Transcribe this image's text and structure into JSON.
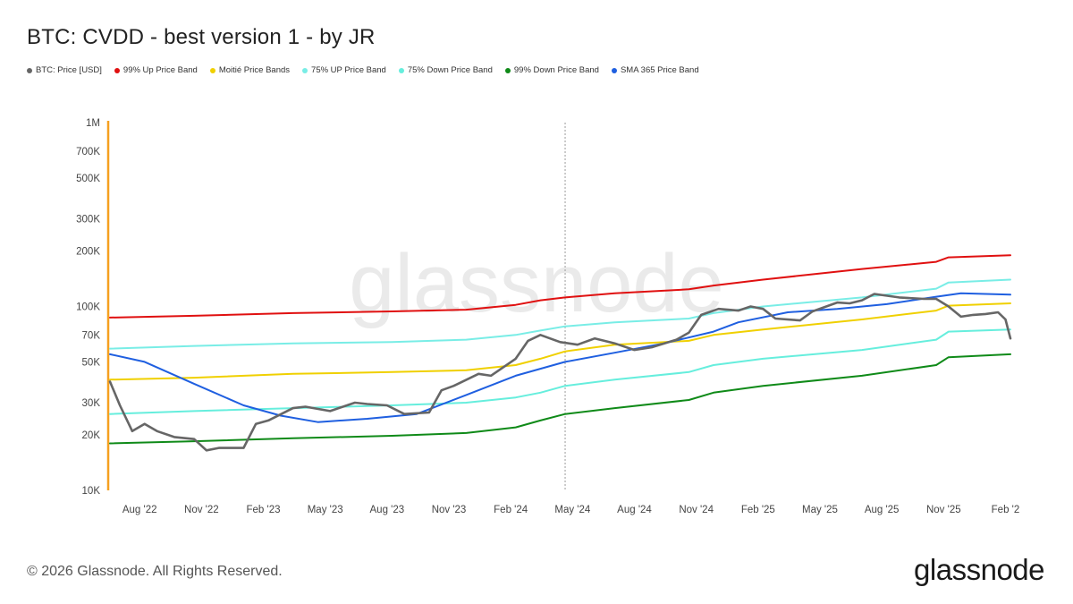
{
  "title": "BTC: CVDD - best version 1 - by JR",
  "footer": "© 2026 Glassnode. All Rights Reserved.",
  "brand": "glassnode",
  "watermark": "glassnode",
  "colors": {
    "price": "#666666",
    "up99": "#e01010",
    "moitie": "#f0d000",
    "up75": "#79ede6",
    "down75": "#66eedd",
    "down99": "#0f8a18",
    "sma365": "#1f5fe0",
    "yaxis": "#f5a020"
  },
  "legend": [
    {
      "key": "price",
      "label": "BTC: Price [USD]"
    },
    {
      "key": "up99",
      "label": "99% Up Price Band"
    },
    {
      "key": "moitie",
      "label": "Moitié Price Bands"
    },
    {
      "key": "up75",
      "label": "75% UP Price Band"
    },
    {
      "key": "down75",
      "label": "75% Down Price Band"
    },
    {
      "key": "down99",
      "label": "99% Down Price Band"
    },
    {
      "key": "sma365",
      "label": "SMA 365 Price Band"
    }
  ],
  "chart_data": {
    "type": "line",
    "yscale": "log",
    "ylim": [
      10000,
      1000000
    ],
    "xlim": [
      2022.46,
      2026.1
    ],
    "ytick_values": [
      1000000,
      700000,
      500000,
      300000,
      200000,
      100000,
      70000,
      50000,
      30000,
      20000,
      10000
    ],
    "ytick_labels": [
      "1M",
      "700K",
      "500K",
      "300K",
      "200K",
      "100K",
      "70K",
      "50K",
      "30K",
      "20K",
      "10K"
    ],
    "xtick_values": [
      2022.58,
      2022.83,
      2023.08,
      2023.33,
      2023.58,
      2023.83,
      2024.08,
      2024.33,
      2024.58,
      2024.83,
      2025.08,
      2025.33,
      2025.58,
      2025.83,
      2026.08
    ],
    "xtick_labels": [
      "Aug '22",
      "Nov '22",
      "Feb '23",
      "May '23",
      "Aug '23",
      "Nov '23",
      "Feb '24",
      "May '24",
      "Aug '24",
      "Nov '24",
      "Feb '25",
      "May '25",
      "Aug '25",
      "Nov '25",
      "Feb '2"
    ],
    "marker_x": 2024.3,
    "series": [
      {
        "name": "BTC: Price [USD]",
        "key": "price",
        "x": [
          2022.46,
          2022.5,
          2022.55,
          2022.6,
          2022.65,
          2022.72,
          2022.8,
          2022.85,
          2022.9,
          2023.0,
          2023.05,
          2023.1,
          2023.2,
          2023.25,
          2023.35,
          2023.45,
          2023.5,
          2023.58,
          2023.65,
          2023.75,
          2023.8,
          2023.85,
          2023.95,
          2024.0,
          2024.1,
          2024.15,
          2024.2,
          2024.28,
          2024.35,
          2024.42,
          2024.5,
          2024.58,
          2024.65,
          2024.75,
          2024.8,
          2024.85,
          2024.92,
          2025.0,
          2025.05,
          2025.1,
          2025.15,
          2025.25,
          2025.3,
          2025.4,
          2025.45,
          2025.5,
          2025.55,
          2025.65,
          2025.75,
          2025.8,
          2025.85,
          2025.9,
          2025.95,
          2026.0,
          2026.05,
          2026.08,
          2026.1
        ],
        "values": [
          39000,
          29000,
          21000,
          23000,
          21000,
          19500,
          19000,
          16500,
          17000,
          17000,
          23000,
          24000,
          28000,
          28500,
          27000,
          30000,
          29500,
          29000,
          26000,
          26500,
          35000,
          37000,
          43000,
          42000,
          52000,
          65000,
          70000,
          64000,
          62000,
          67000,
          63000,
          58000,
          60000,
          66000,
          72000,
          90000,
          97000,
          95000,
          100000,
          97000,
          86000,
          84000,
          94000,
          105000,
          104000,
          108000,
          117000,
          112000,
          110000,
          110000,
          100000,
          88000,
          90000,
          91000,
          93000,
          85000,
          67000
        ]
      },
      {
        "name": "99% Up Price Band",
        "key": "up99",
        "x": [
          2022.46,
          2022.8,
          2023.2,
          2023.6,
          2023.9,
          2024.1,
          2024.2,
          2024.3,
          2024.5,
          2024.8,
          2024.9,
          2025.1,
          2025.5,
          2025.8,
          2025.85,
          2026.1
        ],
        "values": [
          87000,
          89000,
          92000,
          94000,
          96000,
          102000,
          108000,
          112000,
          118000,
          124000,
          130000,
          140000,
          160000,
          175000,
          185000,
          190000
        ]
      },
      {
        "name": "Moitié Price Bands",
        "key": "moitie",
        "x": [
          2022.46,
          2022.8,
          2023.2,
          2023.6,
          2023.9,
          2024.1,
          2024.2,
          2024.3,
          2024.5,
          2024.8,
          2024.9,
          2025.1,
          2025.5,
          2025.8,
          2025.85,
          2026.1
        ],
        "values": [
          40000,
          41000,
          43000,
          44000,
          45000,
          48000,
          52000,
          57000,
          62000,
          65000,
          70000,
          75000,
          85000,
          95000,
          101000,
          104000
        ]
      },
      {
        "name": "75% UP Price Band",
        "key": "up75",
        "x": [
          2022.46,
          2022.8,
          2023.2,
          2023.6,
          2023.9,
          2024.1,
          2024.2,
          2024.3,
          2024.5,
          2024.8,
          2024.9,
          2025.1,
          2025.5,
          2025.8,
          2025.85,
          2026.1
        ],
        "values": [
          59000,
          61000,
          63000,
          64000,
          66000,
          70000,
          74000,
          78000,
          82000,
          86000,
          92000,
          100000,
          112000,
          125000,
          135000,
          140000
        ]
      },
      {
        "name": "75% Down Price Band",
        "key": "down75",
        "x": [
          2022.46,
          2022.8,
          2023.2,
          2023.6,
          2023.9,
          2024.1,
          2024.2,
          2024.3,
          2024.5,
          2024.8,
          2024.9,
          2025.1,
          2025.5,
          2025.8,
          2025.85,
          2026.1
        ],
        "values": [
          26000,
          27000,
          28000,
          29000,
          30000,
          32000,
          34000,
          37000,
          40000,
          44000,
          48000,
          52000,
          58000,
          66000,
          73000,
          75000
        ]
      },
      {
        "name": "99% Down Price Band",
        "key": "down99",
        "x": [
          2022.46,
          2022.8,
          2023.2,
          2023.6,
          2023.9,
          2024.1,
          2024.2,
          2024.3,
          2024.5,
          2024.8,
          2024.9,
          2025.1,
          2025.5,
          2025.8,
          2025.85,
          2026.1
        ],
        "values": [
          18000,
          18500,
          19200,
          19800,
          20500,
          22000,
          24000,
          26000,
          28000,
          31000,
          34000,
          37000,
          42000,
          48000,
          53000,
          55000
        ]
      },
      {
        "name": "SMA 365 Price Band",
        "key": "sma365",
        "x": [
          2022.46,
          2022.6,
          2022.8,
          2023.0,
          2023.15,
          2023.3,
          2023.5,
          2023.7,
          2023.9,
          2024.1,
          2024.3,
          2024.5,
          2024.7,
          2024.9,
          2025.0,
          2025.2,
          2025.4,
          2025.6,
          2025.8,
          2025.9,
          2026.1
        ],
        "values": [
          55000,
          50000,
          38000,
          29000,
          25500,
          23500,
          24500,
          26000,
          33000,
          42000,
          50000,
          56000,
          63000,
          73000,
          82000,
          93000,
          97000,
          103000,
          113000,
          118000,
          116000
        ]
      }
    ]
  }
}
